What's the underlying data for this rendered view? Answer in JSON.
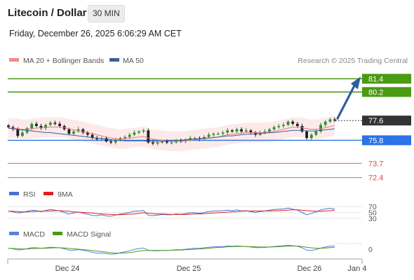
{
  "header": {
    "title": "Litecoin / Dollar",
    "timeframe": "30 MIN"
  },
  "datetime": "Friday, December 26, 2025 6:06:29 AM CET",
  "legend": {
    "items": [
      {
        "label": "MA 20 + Bollinger Bands",
        "color": "#f08a8a"
      },
      {
        "label": "MA 50",
        "color": "#3a5f9a"
      }
    ],
    "credit": "Research © 2025 Trading Central"
  },
  "colors": {
    "up": "#2f8f2f",
    "down": "#1f1f1f",
    "support": "#2a73e8",
    "resistance_green": "#4a9a12",
    "resistance_red": "#d84b4b",
    "last": "#333333",
    "arrow": "#2f5d9a",
    "bb_fill": "#fbe3e3",
    "rsi": "#4a6fd6",
    "rsi_ma": "#d22",
    "macd": "#5b7fe0",
    "macd_signal": "#4a9a12"
  },
  "chart_data": [
    {
      "type": "candlestick",
      "title": "",
      "y_range": [
        72.0,
        82.2
      ],
      "x_tick_labels": [
        "Dec 24",
        "Dec 25",
        "Dec 26",
        "Jan 4"
      ],
      "levels": [
        {
          "value": 81.4,
          "label": "81.4",
          "kind": "resistance"
        },
        {
          "value": 80.2,
          "label": "80.2",
          "kind": "resistance"
        },
        {
          "value": 77.6,
          "label": "77.6",
          "kind": "last"
        },
        {
          "value": 75.8,
          "label": "75.8",
          "kind": "support"
        },
        {
          "value": 73.7,
          "label": "73.7",
          "kind": "level"
        },
        {
          "value": 72.4,
          "label": "72.4",
          "kind": "level"
        }
      ],
      "projection_target": 81.4,
      "close": [
        77.0,
        76.8,
        76.2,
        76.5,
        76.9,
        77.3,
        77.1,
        76.9,
        77.2,
        77.4,
        77.3,
        77.1,
        76.8,
        76.4,
        76.6,
        76.8,
        76.5,
        76.3,
        76.0,
        75.9,
        76.0,
        75.7,
        75.6,
        75.8,
        76.0,
        76.1,
        76.3,
        76.5,
        76.6,
        76.7,
        75.6,
        75.5,
        75.6,
        75.7,
        75.6,
        75.6,
        75.8,
        75.7,
        75.8,
        76.0,
        76.0,
        75.9,
        76.1,
        76.3,
        76.4,
        76.4,
        76.5,
        76.7,
        76.6,
        76.8,
        76.6,
        76.7,
        76.5,
        76.3,
        76.5,
        76.6,
        76.8,
        77.0,
        77.1,
        77.2,
        77.5,
        77.3,
        77.1,
        76.6,
        76.0,
        76.3,
        76.6,
        77.2,
        77.5,
        77.7,
        77.6
      ],
      "ma20": [
        76.9,
        76.9,
        76.85,
        76.8,
        76.8,
        76.85,
        76.9,
        76.95,
        77.0,
        77.0,
        77.0,
        77.0,
        76.95,
        76.85,
        76.75,
        76.7,
        76.6,
        76.5,
        76.4,
        76.3,
        76.2,
        76.1,
        76.0,
        75.95,
        75.9,
        75.95,
        76.0,
        76.05,
        76.1,
        76.15,
        76.0,
        75.9,
        75.85,
        75.8,
        75.75,
        75.7,
        75.7,
        75.7,
        75.75,
        75.8,
        75.85,
        75.9,
        75.95,
        76.0,
        76.05,
        76.1,
        76.2,
        76.3,
        76.35,
        76.4,
        76.45,
        76.5,
        76.5,
        76.5,
        76.5,
        76.5,
        76.55,
        76.6,
        76.7,
        76.8,
        76.9,
        77.0,
        77.0,
        76.95,
        76.85,
        76.8,
        76.8,
        76.85,
        76.95,
        77.05,
        77.15
      ],
      "ma50": [
        76.9,
        76.85,
        76.8,
        76.75,
        76.7,
        76.65,
        76.6,
        76.55,
        76.5,
        76.5,
        76.45,
        76.4,
        76.35,
        76.3,
        76.25,
        76.2,
        76.15,
        76.1,
        76.05,
        76.0,
        75.95,
        75.9,
        75.85,
        75.8,
        75.8,
        75.75,
        75.75,
        75.75,
        75.75,
        75.75,
        75.7,
        75.7,
        75.7,
        75.7,
        75.75,
        75.75,
        75.8,
        75.8,
        75.85,
        75.9,
        75.9,
        75.95,
        76.0,
        76.0,
        76.05,
        76.1,
        76.15,
        76.2,
        76.2,
        76.25,
        76.3,
        76.35,
        76.35,
        76.4,
        76.4,
        76.45,
        76.5,
        76.5,
        76.55,
        76.6,
        76.65,
        76.7,
        76.7,
        76.7,
        76.65,
        76.65,
        76.65,
        76.7,
        76.75,
        76.8,
        76.85
      ]
    },
    {
      "type": "line",
      "title": "",
      "legend": [
        "RSI",
        "9MA"
      ],
      "y_range": [
        20,
        80
      ],
      "y_ticks": [
        70,
        50,
        30
      ],
      "series": [
        {
          "name": "RSI",
          "values": [
            55,
            52,
            48,
            50,
            54,
            58,
            56,
            53,
            57,
            60,
            58,
            55,
            50,
            45,
            48,
            52,
            47,
            44,
            40,
            39,
            42,
            38,
            37,
            41,
            45,
            47,
            50,
            54,
            55,
            57,
            40,
            39,
            41,
            43,
            42,
            42,
            45,
            44,
            46,
            49,
            49,
            47,
            50,
            53,
            55,
            55,
            56,
            58,
            56,
            59,
            55,
            56,
            53,
            50,
            53,
            55,
            58,
            60,
            61,
            62,
            65,
            61,
            58,
            50,
            42,
            47,
            52,
            59,
            62,
            64,
            62
          ]
        },
        {
          "name": "9MA",
          "values": [
            54,
            54,
            53,
            52,
            52,
            53,
            54,
            54,
            55,
            55,
            56,
            56,
            55,
            54,
            52,
            51,
            50,
            49,
            48,
            46,
            45,
            44,
            43,
            42,
            42,
            43,
            44,
            45,
            47,
            49,
            47,
            46,
            45,
            45,
            44,
            43,
            43,
            43,
            43,
            44,
            45,
            45,
            46,
            47,
            48,
            49,
            50,
            51,
            52,
            53,
            54,
            55,
            55,
            55,
            55,
            55,
            55,
            56,
            56,
            57,
            58,
            59,
            59,
            58,
            56,
            55,
            54,
            54,
            55,
            56,
            58
          ]
        }
      ]
    },
    {
      "type": "line",
      "title": "",
      "legend": [
        "MACD",
        "MACD Signal"
      ],
      "y_range": [
        -0.5,
        0.5
      ],
      "y_ticks": [
        0
      ],
      "series": [
        {
          "name": "MACD",
          "values": [
            0.05,
            0.02,
            -0.04,
            -0.02,
            0.03,
            0.08,
            0.07,
            0.05,
            0.07,
            0.1,
            0.09,
            0.07,
            0.02,
            -0.05,
            -0.05,
            -0.02,
            -0.05,
            -0.1,
            -0.16,
            -0.2,
            -0.2,
            -0.23,
            -0.26,
            -0.24,
            -0.18,
            -0.13,
            -0.08,
            -0.01,
            0.03,
            0.06,
            -0.05,
            -0.08,
            -0.08,
            -0.06,
            -0.06,
            -0.05,
            -0.03,
            -0.02,
            0.0,
            0.03,
            0.05,
            0.05,
            0.07,
            0.1,
            0.12,
            0.13,
            0.14,
            0.16,
            0.15,
            0.17,
            0.15,
            0.14,
            0.11,
            0.08,
            0.08,
            0.09,
            0.11,
            0.14,
            0.16,
            0.18,
            0.2,
            0.18,
            0.15,
            0.07,
            -0.05,
            -0.06,
            -0.02,
            0.06,
            0.11,
            0.16,
            0.17
          ]
        },
        {
          "name": "MACD Signal",
          "values": [
            0.04,
            0.04,
            0.02,
            0.01,
            0.01,
            0.03,
            0.04,
            0.05,
            0.05,
            0.06,
            0.07,
            0.07,
            0.06,
            0.04,
            0.02,
            0.0,
            -0.02,
            -0.04,
            -0.07,
            -0.1,
            -0.12,
            -0.15,
            -0.18,
            -0.2,
            -0.2,
            -0.19,
            -0.17,
            -0.14,
            -0.1,
            -0.07,
            -0.06,
            -0.06,
            -0.06,
            -0.06,
            -0.06,
            -0.05,
            -0.05,
            -0.04,
            -0.03,
            -0.02,
            0.0,
            0.01,
            0.03,
            0.05,
            0.07,
            0.09,
            0.1,
            0.12,
            0.13,
            0.14,
            0.14,
            0.14,
            0.13,
            0.12,
            0.11,
            0.11,
            0.11,
            0.12,
            0.13,
            0.14,
            0.16,
            0.16,
            0.16,
            0.14,
            0.1,
            0.07,
            0.05,
            0.05,
            0.06,
            0.08,
            0.1
          ]
        }
      ]
    }
  ]
}
